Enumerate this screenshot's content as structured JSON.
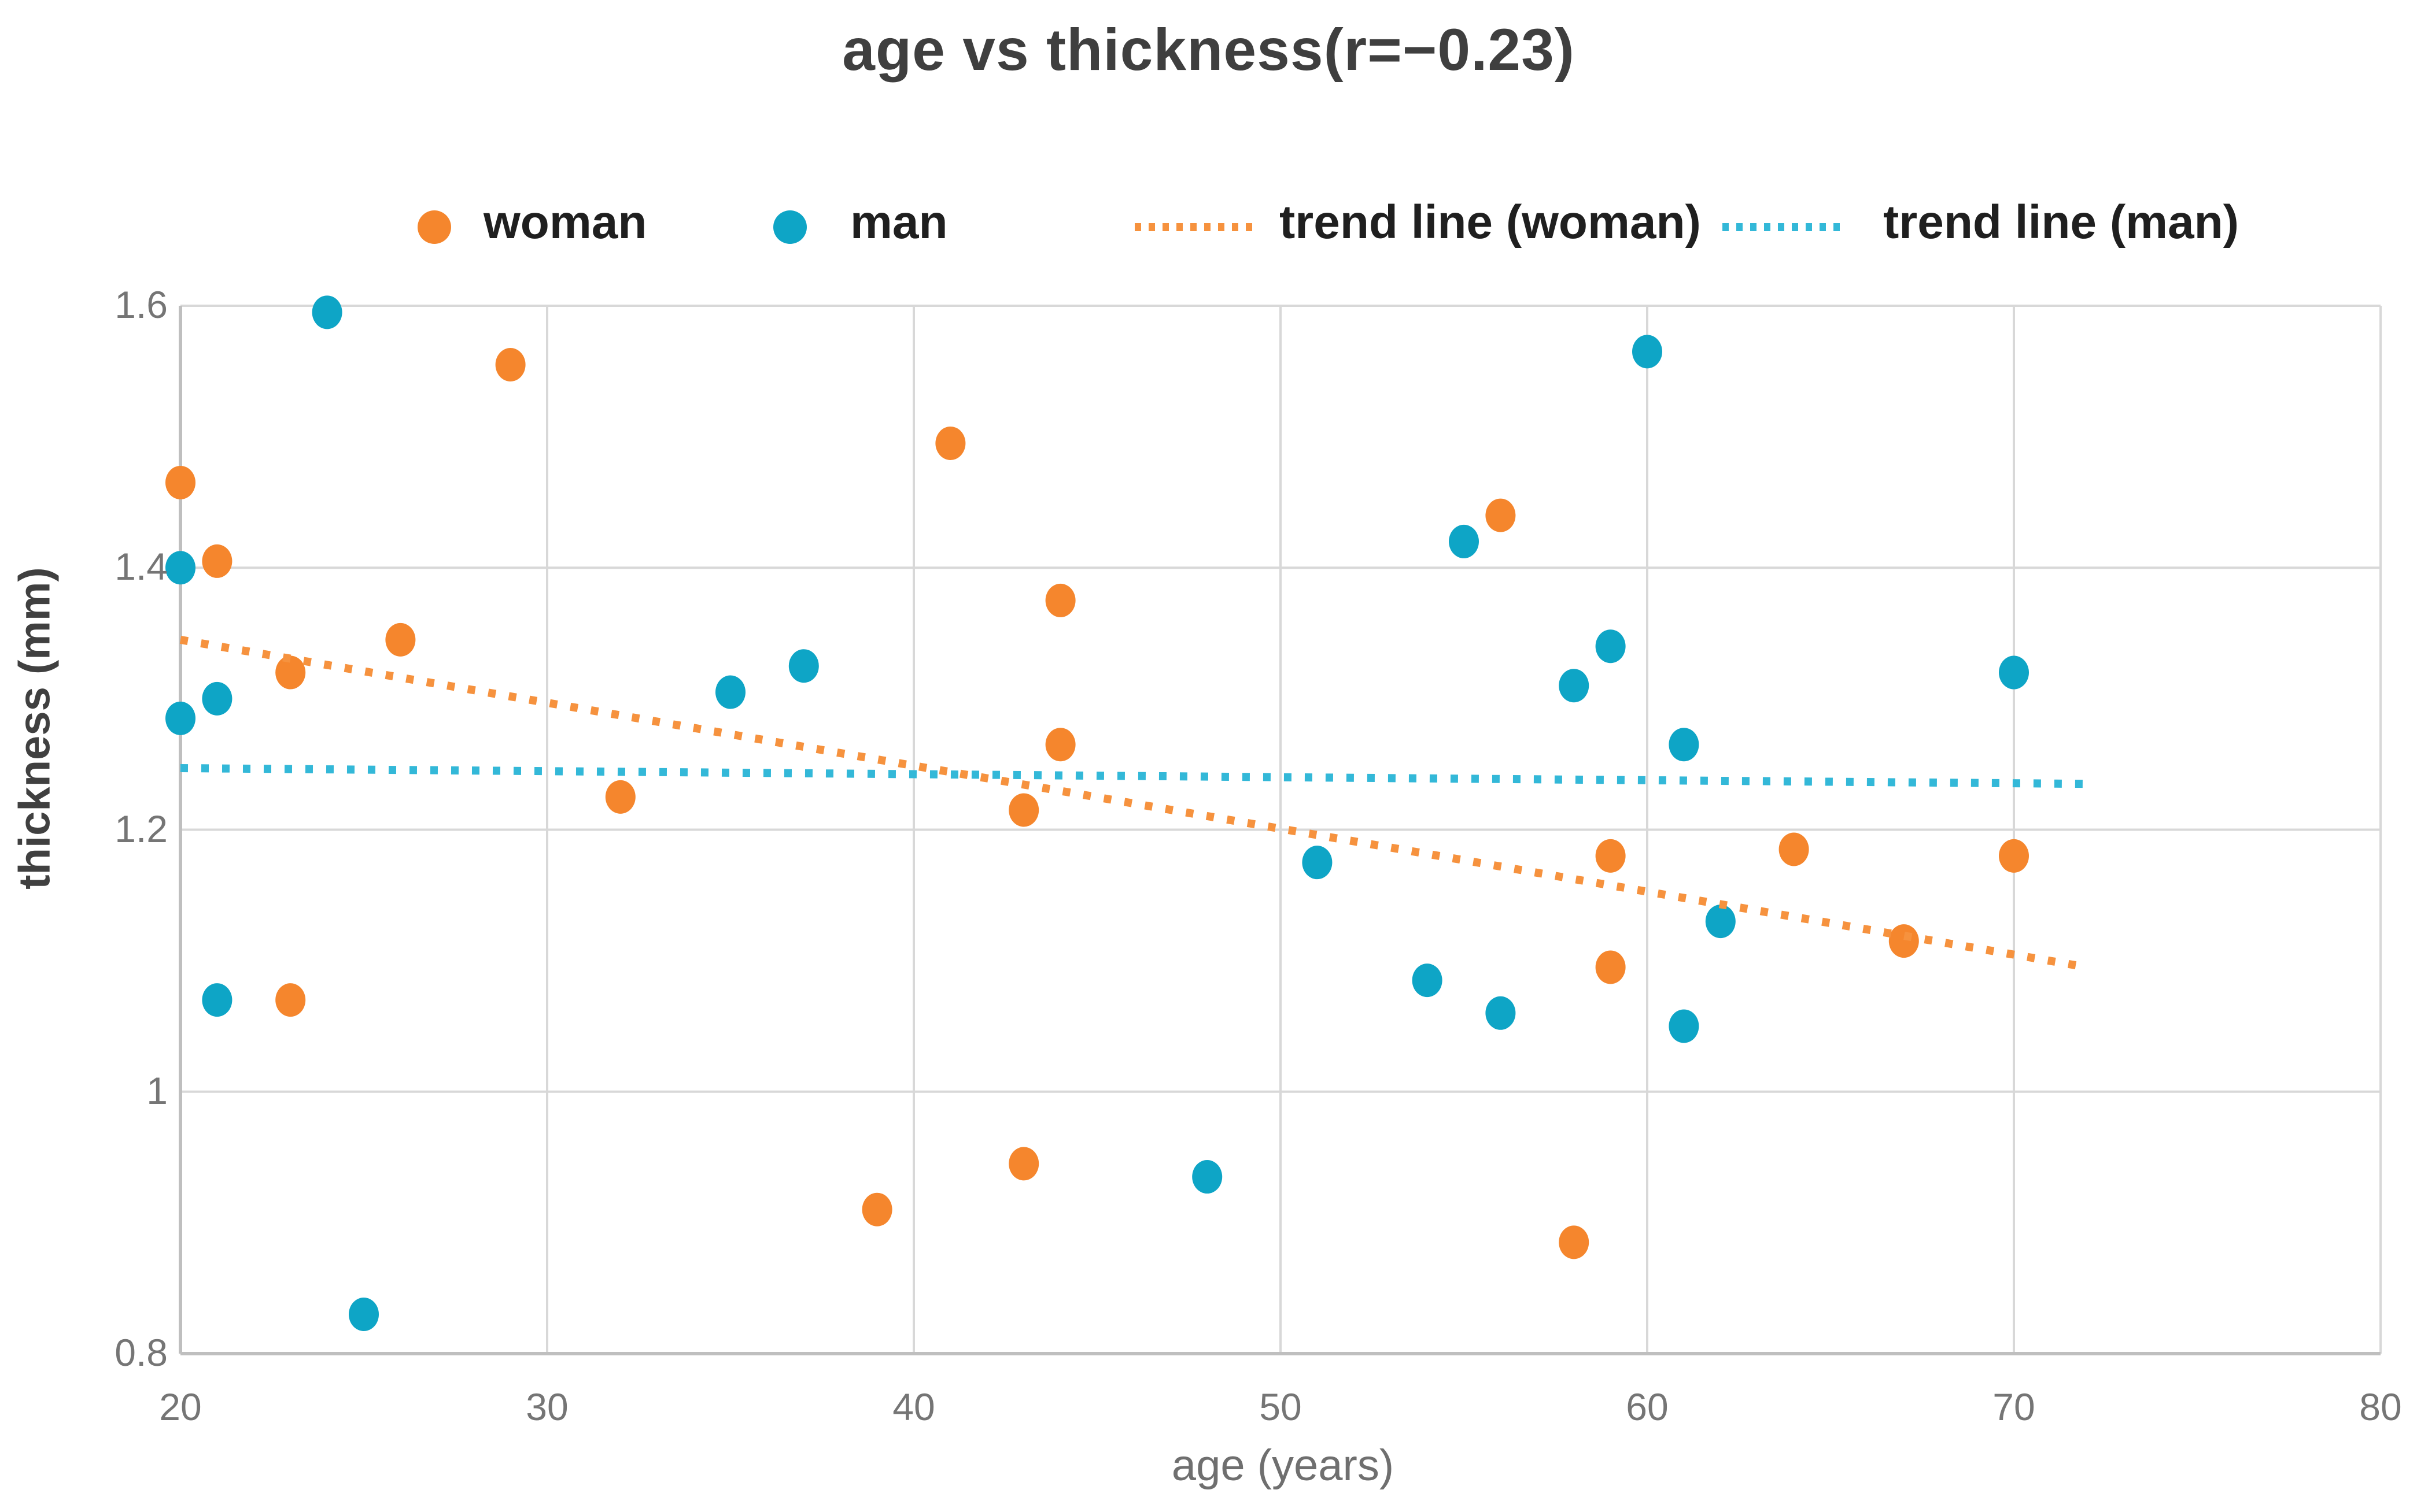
{
  "title": "age vs thickness(r=−0.23)",
  "legend": {
    "items": [
      {
        "label": "woman",
        "swatch": "dot",
        "color": "#F5862D"
      },
      {
        "label": "man",
        "swatch": "dot",
        "color": "#0EA5C6"
      },
      {
        "label": "trend line (woman)",
        "swatch": "dotted-line",
        "color": "#F6923E"
      },
      {
        "label": "trend line (man)",
        "swatch": "dotted-line",
        "color": "#33B8D8"
      }
    ]
  },
  "chart_data": {
    "type": "scatter",
    "title": "age vs thickness(r=−0.23)",
    "xlabel": "age (years)",
    "ylabel": "thickness (mm)",
    "xlim": [
      20,
      80
    ],
    "ylim": [
      0.8,
      1.6
    ],
    "grid": true,
    "legend_position": "top",
    "x_ticks": [
      20,
      30,
      40,
      50,
      60,
      70,
      80
    ],
    "y_ticks": [
      {
        "value": 0.8,
        "label": "0.8"
      },
      {
        "value": 1.0,
        "label": "1"
      },
      {
        "value": 1.2,
        "label": "1.2"
      },
      {
        "value": 1.4,
        "label": "1.4"
      },
      {
        "value": 1.6,
        "label": "1.6"
      }
    ],
    "series": [
      {
        "name": "woman",
        "kind": "scatter",
        "color": "#F5862D",
        "points": [
          [
            20,
            1.465
          ],
          [
            21,
            1.405
          ],
          [
            23,
            1.32
          ],
          [
            23,
            1.07
          ],
          [
            26,
            1.345
          ],
          [
            29,
            1.555
          ],
          [
            32,
            1.225
          ],
          [
            39,
            0.91
          ],
          [
            41,
            1.495
          ],
          [
            43,
            1.215
          ],
          [
            43,
            0.945
          ],
          [
            44,
            1.375
          ],
          [
            44,
            1.265
          ],
          [
            56,
            1.44
          ],
          [
            58,
            0.885
          ],
          [
            59,
            1.18
          ],
          [
            59,
            1.095
          ],
          [
            64,
            1.185
          ],
          [
            67,
            1.115
          ],
          [
            70,
            1.18
          ]
        ]
      },
      {
        "name": "man",
        "kind": "scatter",
        "color": "#0EA5C6",
        "points": [
          [
            20,
            1.4
          ],
          [
            20,
            1.285
          ],
          [
            21,
            1.3
          ],
          [
            21,
            1.07
          ],
          [
            24,
            1.595
          ],
          [
            25,
            0.83
          ],
          [
            35,
            1.305
          ],
          [
            37,
            1.325
          ],
          [
            48,
            0.935
          ],
          [
            51,
            1.175
          ],
          [
            54,
            1.085
          ],
          [
            55,
            1.42
          ],
          [
            56,
            1.06
          ],
          [
            58,
            1.31
          ],
          [
            59,
            1.34
          ],
          [
            60,
            1.565
          ],
          [
            61,
            1.265
          ],
          [
            61,
            1.05
          ],
          [
            62,
            1.13
          ],
          [
            70,
            1.32
          ]
        ]
      },
      {
        "name": "trend line (woman)",
        "kind": "trend",
        "color": "#F6923E",
        "start": [
          20,
          1.345
        ],
        "end": [
          72,
          1.095
        ]
      },
      {
        "name": "trend line (man)",
        "kind": "trend",
        "color": "#33B8D8",
        "start": [
          20,
          1.247
        ],
        "end": [
          72,
          1.235
        ]
      }
    ]
  }
}
